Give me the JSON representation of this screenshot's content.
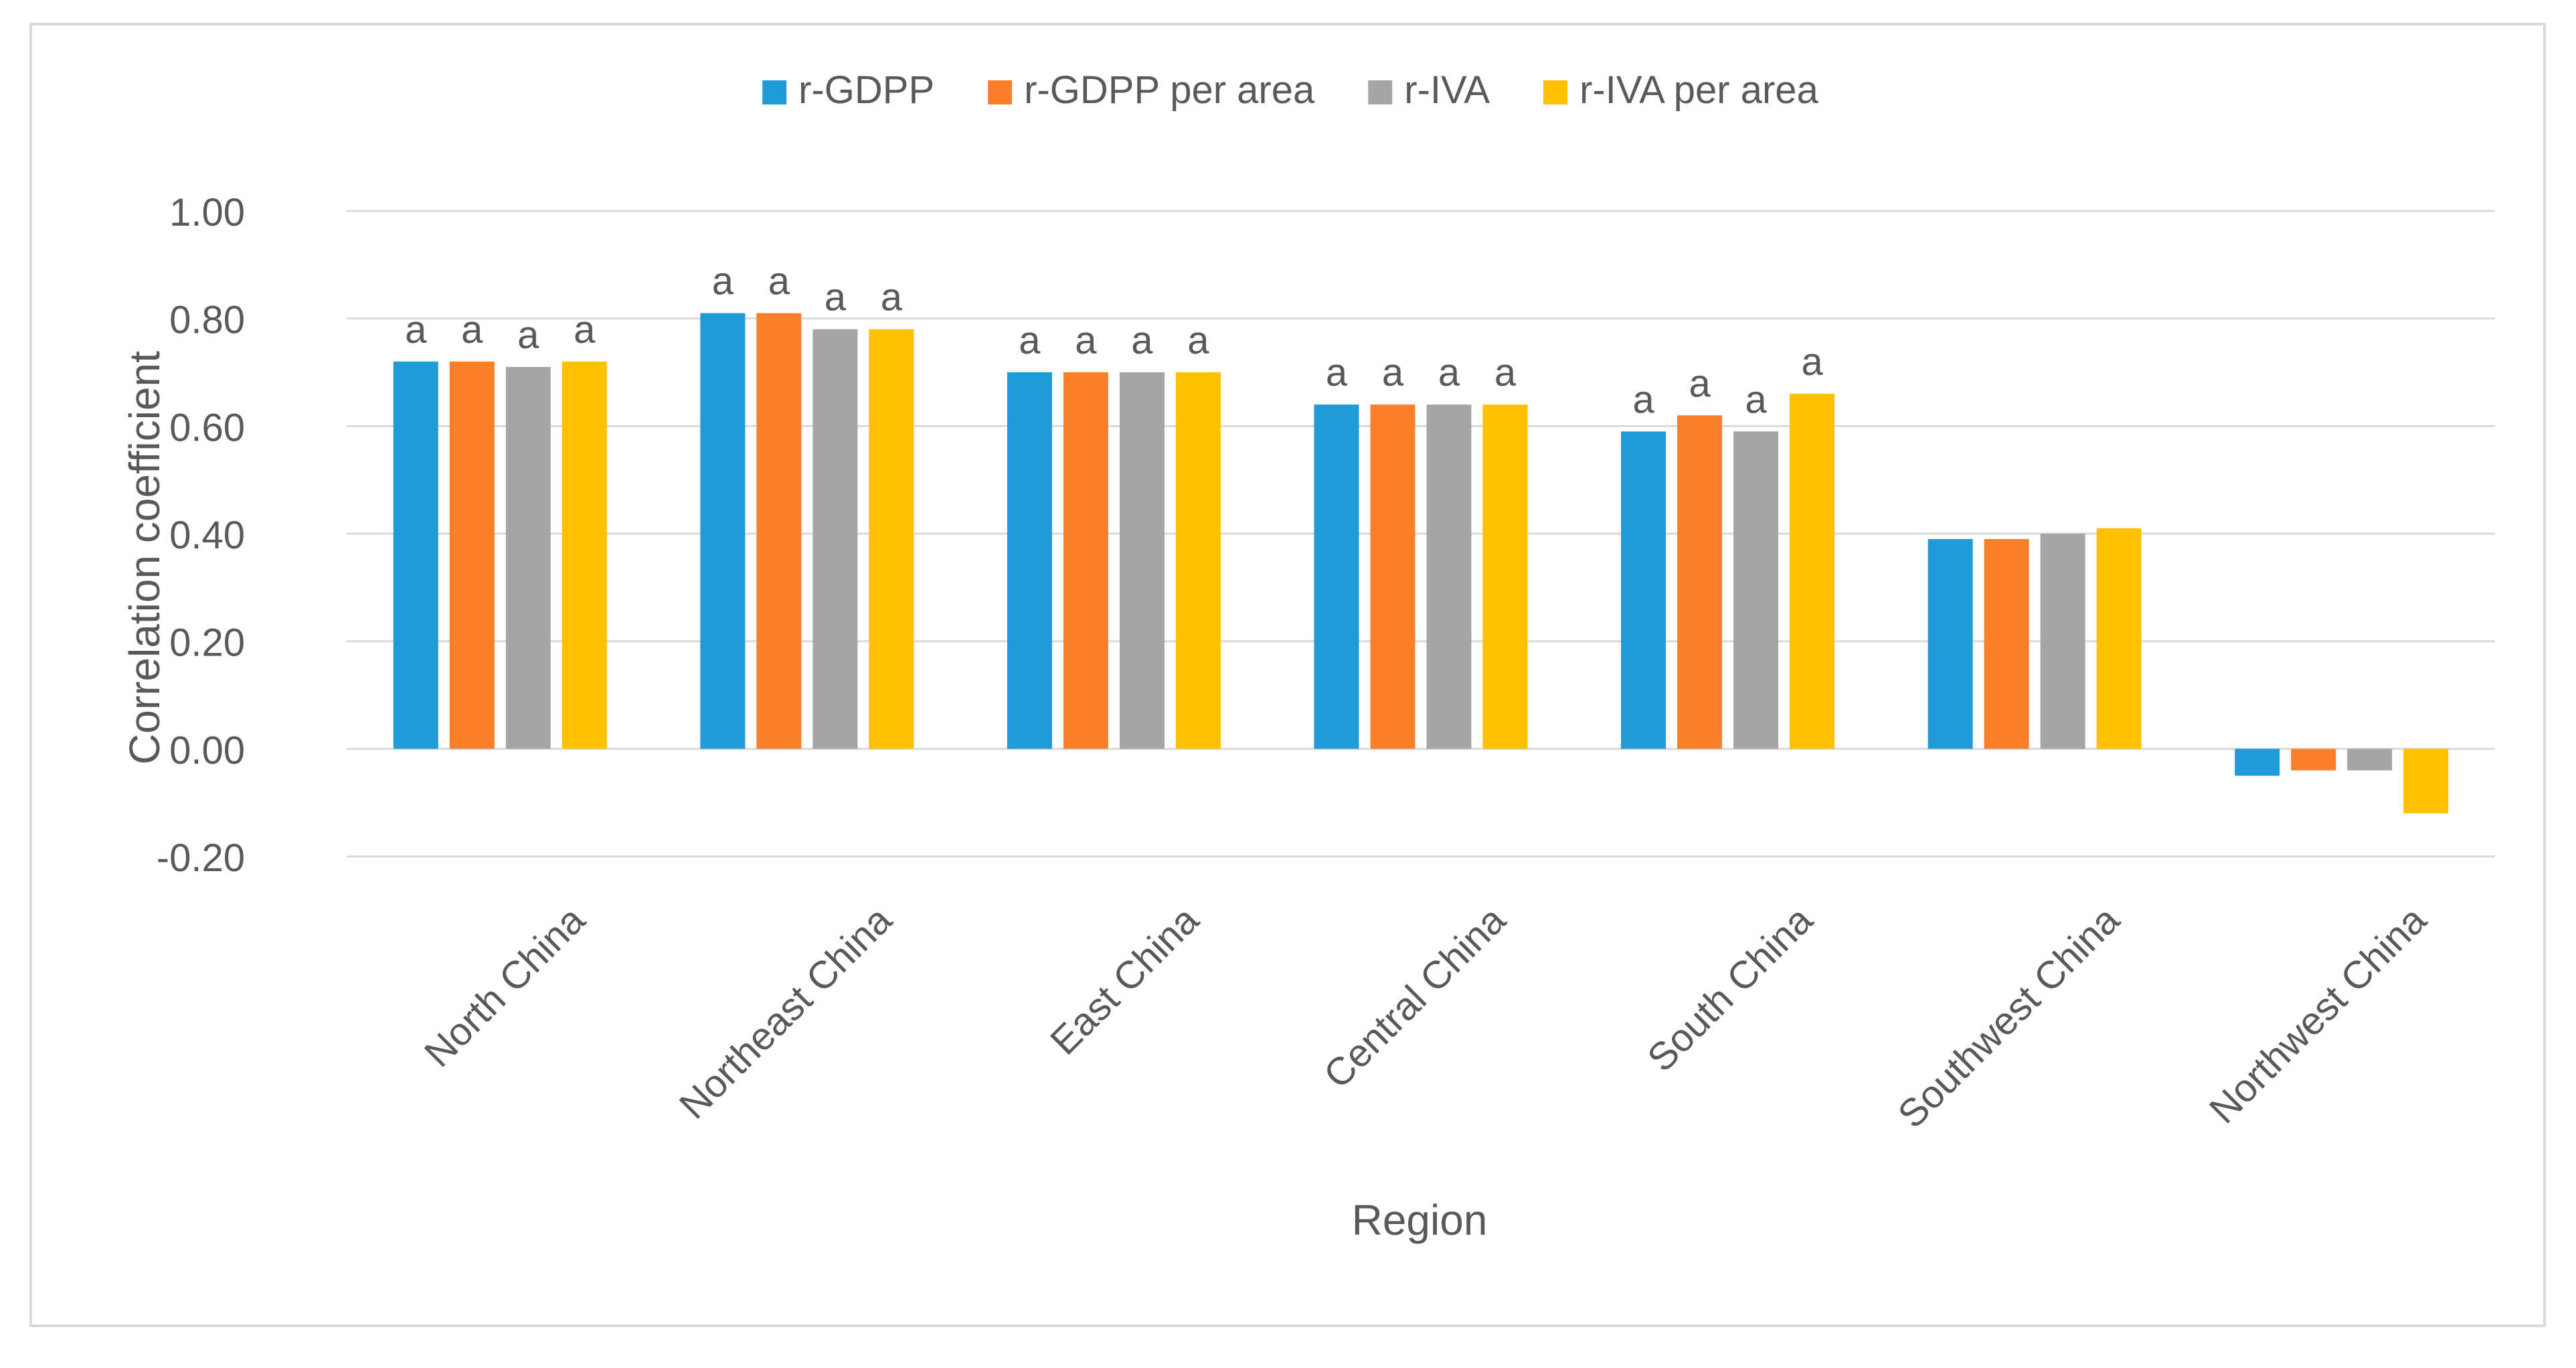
{
  "chart_data": {
    "type": "bar",
    "title": "",
    "xlabel": "Region",
    "ylabel": "Correlation coefficient",
    "ylim": [
      -0.2,
      1.0
    ],
    "yticks": [
      -0.2,
      0.0,
      0.2,
      0.4,
      0.6,
      0.8,
      1.0
    ],
    "ytick_labels": [
      "-0.20",
      "0.00",
      "0.20",
      "0.40",
      "0.60",
      "0.80",
      "1.00"
    ],
    "grid": true,
    "legend_position": "top-center",
    "categories": [
      "North China",
      "Northeast China",
      "East China",
      "Central China",
      "South China",
      "Southwest China",
      "Northwest China"
    ],
    "series": [
      {
        "name": "r-GDPP",
        "color": "#1f9bd7",
        "values": [
          0.72,
          0.81,
          0.7,
          0.64,
          0.59,
          0.39,
          -0.05
        ],
        "annotations": [
          "a",
          "a",
          "a",
          "a",
          "a",
          "",
          ""
        ]
      },
      {
        "name": "r-GDPP per area",
        "color": "#fb7f2a",
        "values": [
          0.72,
          0.81,
          0.7,
          0.64,
          0.62,
          0.39,
          -0.04
        ],
        "annotations": [
          "a",
          "a",
          "a",
          "a",
          "a",
          "",
          ""
        ]
      },
      {
        "name": "r-IVA",
        "color": "#a5a5a5",
        "values": [
          0.71,
          0.78,
          0.7,
          0.64,
          0.59,
          0.4,
          -0.04
        ],
        "annotations": [
          "a",
          "a",
          "a",
          "a",
          "a",
          "",
          ""
        ]
      },
      {
        "name": "r-IVA per area",
        "color": "#ffc000",
        "values": [
          0.72,
          0.78,
          0.7,
          0.64,
          0.66,
          0.41,
          -0.12
        ],
        "annotations": [
          "a",
          "a",
          "a",
          "a",
          "a",
          "",
          ""
        ]
      }
    ]
  },
  "colors": {
    "grid": "#d9d9d9",
    "text": "#595959",
    "frame": "#d9d9d9"
  }
}
